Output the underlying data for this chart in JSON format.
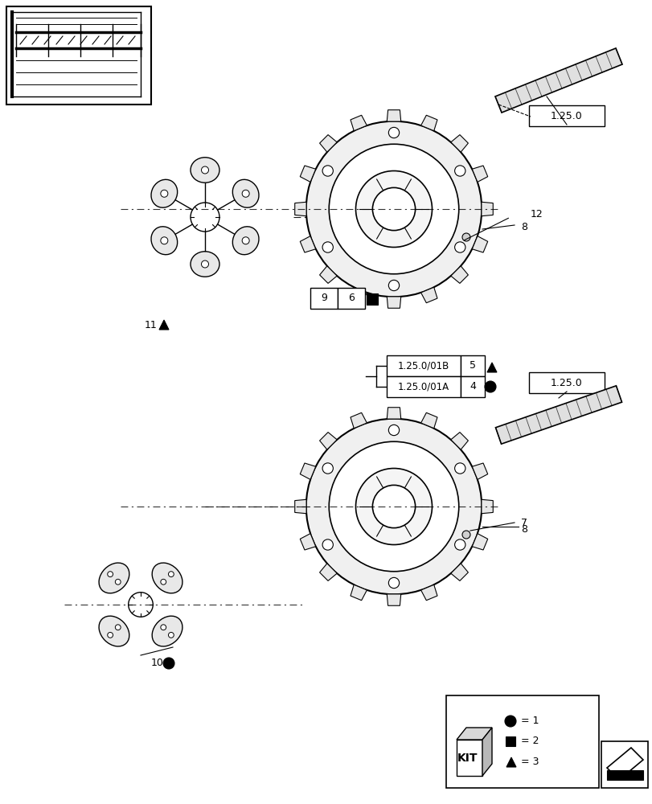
{
  "bg_color": "#ffffff",
  "line_color": "#000000",
  "fig_width": 8.12,
  "fig_height": 10.0,
  "labels": {
    "ref_top": "1.25.0",
    "ref_mid": "1.25.0",
    "label_12": "12",
    "label_8_top": "8",
    "label_9": "9",
    "label_6": "6",
    "label_11": "11",
    "label_1250_01B": "1.25.0/01B",
    "label_5": "5",
    "label_1250_01A": "1.25.0/01A",
    "label_4": "4",
    "label_7": "7",
    "label_8_bot": "8",
    "label_10": "10",
    "kit_text": "KIT",
    "legend_1": "= 1",
    "legend_2": "= 2",
    "legend_3": "= 3"
  }
}
